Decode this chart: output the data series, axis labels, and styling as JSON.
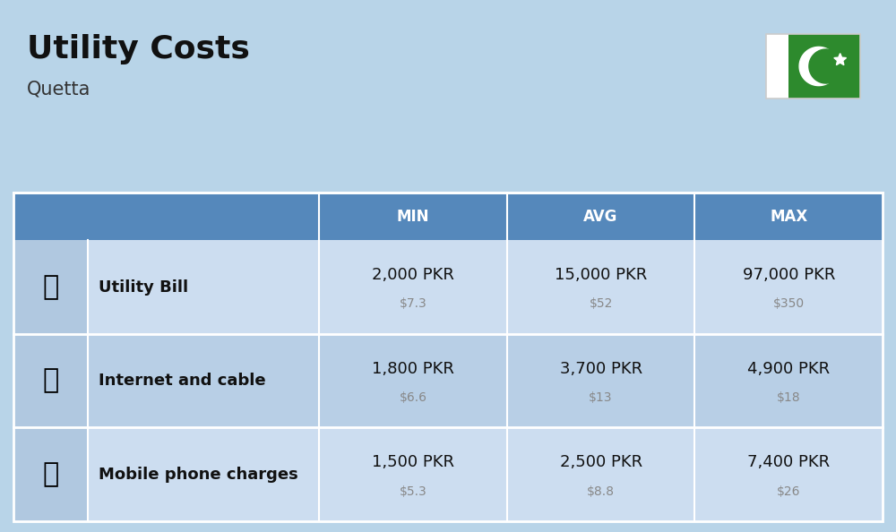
{
  "title": "Utility Costs",
  "subtitle": "Quetta",
  "background_color": "#b8d4e8",
  "header_bg_color": "#5588bb",
  "header_text_color": "#ffffff",
  "row_bg_color_odd": "#ccddf0",
  "row_bg_color_even": "#b8cfe6",
  "icon_col_bg": "#b0c8e0",
  "col_headers": [
    "MIN",
    "AVG",
    "MAX"
  ],
  "rows": [
    {
      "label": "Utility Bill",
      "min_pkr": "2,000 PKR",
      "min_usd": "$7.3",
      "avg_pkr": "15,000 PKR",
      "avg_usd": "$52",
      "max_pkr": "97,000 PKR",
      "max_usd": "$350"
    },
    {
      "label": "Internet and cable",
      "min_pkr": "1,800 PKR",
      "min_usd": "$6.6",
      "avg_pkr": "3,700 PKR",
      "avg_usd": "$13",
      "max_pkr": "4,900 PKR",
      "max_usd": "$18"
    },
    {
      "label": "Mobile phone charges",
      "min_pkr": "1,500 PKR",
      "min_usd": "$5.3",
      "avg_pkr": "2,500 PKR",
      "avg_usd": "$8.8",
      "max_pkr": "7,400 PKR",
      "max_usd": "$26"
    }
  ],
  "title_fontsize": 26,
  "subtitle_fontsize": 15,
  "header_fontsize": 12,
  "label_fontsize": 13,
  "pkr_fontsize": 13,
  "usd_fontsize": 10,
  "label_text_color": "#111111",
  "pkr_text_color": "#111111",
  "usd_text_color": "#888888",
  "flag_white": "#ffffff",
  "flag_green": "#2d8a2d"
}
